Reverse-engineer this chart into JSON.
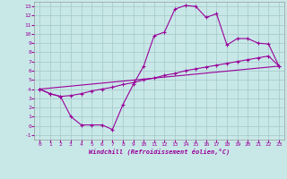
{
  "background_color": "#c8e8e8",
  "grid_color": "#aacccc",
  "line_color": "#990099",
  "xlabel": "Windchill (Refroidissement éolien,°C)",
  "xlim": [
    -0.5,
    23.5
  ],
  "ylim": [
    -1.5,
    13.5
  ],
  "xticks": [
    0,
    1,
    2,
    3,
    4,
    5,
    6,
    7,
    8,
    9,
    10,
    11,
    12,
    13,
    14,
    15,
    16,
    17,
    18,
    19,
    20,
    21,
    22,
    23
  ],
  "yticks": [
    -1,
    0,
    1,
    2,
    3,
    4,
    5,
    6,
    7,
    8,
    9,
    10,
    11,
    12,
    13
  ],
  "curve1_x": [
    0,
    1,
    2,
    3,
    4,
    5,
    6,
    7,
    8,
    9,
    10,
    11,
    12,
    13,
    14,
    15,
    16,
    17,
    18,
    19,
    20,
    21,
    22,
    23
  ],
  "curve1_y": [
    4.0,
    3.5,
    3.2,
    1.0,
    0.1,
    0.1,
    0.1,
    -0.4,
    2.3,
    4.5,
    6.5,
    9.8,
    10.2,
    12.7,
    13.1,
    13.0,
    11.8,
    12.2,
    8.8,
    9.5,
    9.5,
    9.0,
    8.9,
    6.5
  ],
  "curve2_x": [
    0,
    1,
    2,
    3,
    4,
    5,
    6,
    7,
    8,
    9,
    10,
    11,
    12,
    13,
    14,
    15,
    16,
    17,
    18,
    19,
    20,
    21,
    22,
    23
  ],
  "curve2_y": [
    4.0,
    3.5,
    3.2,
    3.3,
    3.5,
    3.8,
    4.0,
    4.2,
    4.5,
    4.7,
    5.0,
    5.2,
    5.5,
    5.7,
    6.0,
    6.2,
    6.4,
    6.6,
    6.8,
    7.0,
    7.2,
    7.4,
    7.6,
    6.5
  ],
  "line3_x": [
    0,
    23
  ],
  "line3_y": [
    4.0,
    6.5
  ]
}
